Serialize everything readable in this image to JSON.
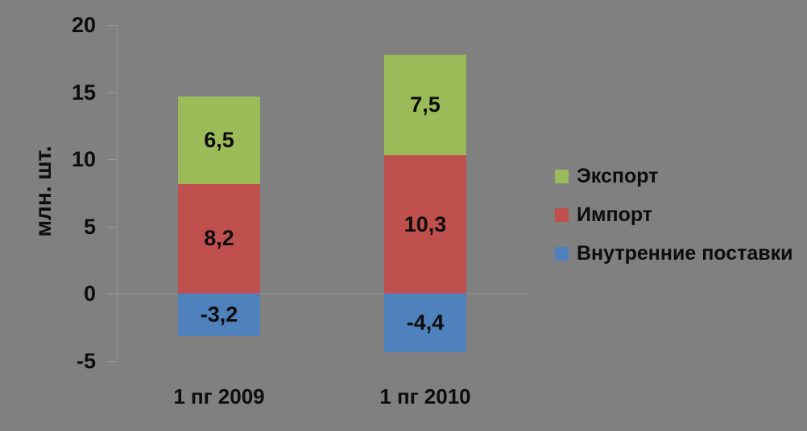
{
  "chart_data": {
    "type": "bar",
    "stacked": true,
    "title": "",
    "xlabel": "",
    "ylabel": "млн. шт.",
    "categories": [
      "1 пг 2009",
      "1 пг 2010"
    ],
    "series": [
      {
        "name": "Экспорт",
        "color": "#9BBB59",
        "values": [
          6.5,
          7.5
        ],
        "labels": [
          "6,5",
          "7,5"
        ]
      },
      {
        "name": "Импорт",
        "color": "#C0504D",
        "values": [
          8.2,
          10.3
        ],
        "labels": [
          "8,2",
          "10,3"
        ]
      },
      {
        "name": "Внутренние поставки",
        "color": "#4F81BD",
        "values": [
          -3.2,
          -4.4
        ],
        "labels": [
          "-3,2",
          "-4,4"
        ]
      }
    ],
    "ylim": [
      -5,
      20
    ],
    "yticks": [
      20,
      15,
      10,
      5,
      0,
      -5
    ],
    "ytick_labels": [
      "20",
      "15",
      "10",
      "5",
      "0",
      "-5"
    ],
    "grid": "zero-line-only",
    "legend_position": "right",
    "background_color": "#808080",
    "axis_color": "#969696",
    "text_color": "#0d0d0d"
  }
}
